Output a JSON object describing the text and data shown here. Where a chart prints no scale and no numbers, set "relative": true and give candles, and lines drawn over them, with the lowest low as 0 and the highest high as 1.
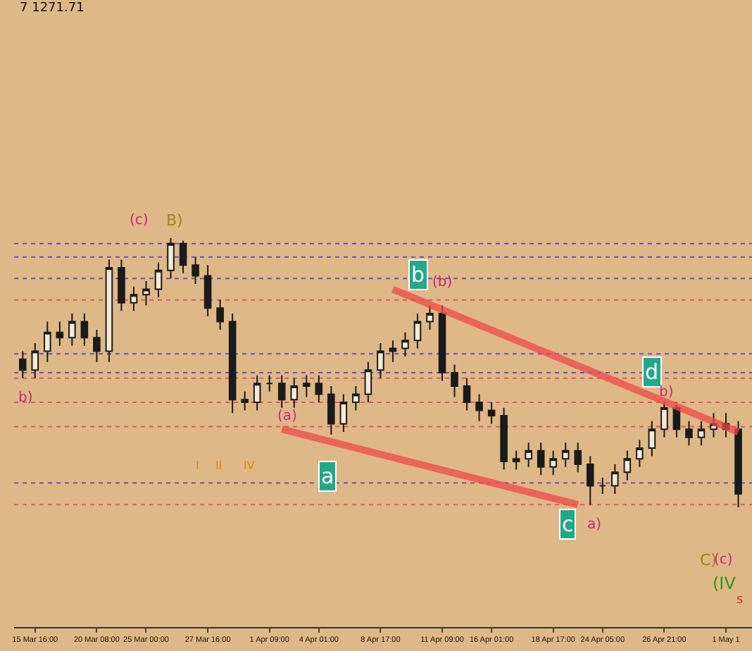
{
  "chart_data": {
    "type": "candlestick",
    "relative": true,
    "grid": false,
    "categories": [
      null,
      "15 Mar 16:00",
      null,
      null,
      null,
      null,
      "20 Mar 08:00",
      null,
      null,
      null,
      "25 Mar 00:00",
      null,
      null,
      null,
      null,
      "27 Mar 16:00",
      null,
      null,
      null,
      null,
      "1 Apr 09:00",
      null,
      null,
      null,
      "4 Apr 01:00",
      null,
      null,
      null,
      null,
      "8 Apr 17:00",
      null,
      null,
      null,
      null,
      "11 Apr 09:00",
      null,
      null,
      null,
      "16 Apr 01:00",
      null,
      null,
      null,
      null,
      "18 Apr 17:00",
      null,
      null,
      null,
      "24 Apr 05:00",
      null,
      null,
      null,
      null,
      "26 Apr 21:00",
      null,
      null,
      null,
      null,
      "1 May 1",
      null
    ],
    "ohlc": [
      [
        0.55,
        0.58,
        0.48,
        0.51
      ],
      [
        0.51,
        0.61,
        0.48,
        0.58
      ],
      [
        0.58,
        0.69,
        0.54,
        0.65
      ],
      [
        0.65,
        0.69,
        0.6,
        0.63
      ],
      [
        0.63,
        0.72,
        0.6,
        0.69
      ],
      [
        0.69,
        0.72,
        0.6,
        0.63
      ],
      [
        0.63,
        0.66,
        0.54,
        0.58
      ],
      [
        0.58,
        0.92,
        0.54,
        0.89
      ],
      [
        0.89,
        0.92,
        0.73,
        0.76
      ],
      [
        0.76,
        0.82,
        0.73,
        0.79
      ],
      [
        0.79,
        0.84,
        0.75,
        0.81
      ],
      [
        0.81,
        0.91,
        0.78,
        0.88
      ],
      [
        0.88,
        1.0,
        0.85,
        0.98
      ],
      [
        0.98,
        0.99,
        0.87,
        0.9
      ],
      [
        0.9,
        0.93,
        0.83,
        0.86
      ],
      [
        0.86,
        0.9,
        0.71,
        0.74
      ],
      [
        0.74,
        0.77,
        0.66,
        0.69
      ],
      [
        0.69,
        0.72,
        0.35,
        0.4
      ],
      [
        0.4,
        0.43,
        0.36,
        0.39
      ],
      [
        0.39,
        0.49,
        0.36,
        0.46
      ],
      [
        0.46,
        0.49,
        0.43,
        0.46
      ],
      [
        0.46,
        0.49,
        0.37,
        0.4
      ],
      [
        0.4,
        0.48,
        0.37,
        0.45
      ],
      [
        0.45,
        0.49,
        0.41,
        0.46
      ],
      [
        0.46,
        0.49,
        0.39,
        0.42
      ],
      [
        0.42,
        0.45,
        0.27,
        0.31
      ],
      [
        0.31,
        0.42,
        0.28,
        0.39
      ],
      [
        0.39,
        0.45,
        0.36,
        0.42
      ],
      [
        0.42,
        0.54,
        0.39,
        0.51
      ],
      [
        0.51,
        0.61,
        0.48,
        0.58
      ],
      [
        0.58,
        0.62,
        0.54,
        0.59
      ],
      [
        0.59,
        0.65,
        0.56,
        0.62
      ],
      [
        0.62,
        0.72,
        0.59,
        0.69
      ],
      [
        0.69,
        0.75,
        0.66,
        0.72
      ],
      [
        0.72,
        0.75,
        0.47,
        0.5
      ],
      [
        0.5,
        0.53,
        0.41,
        0.45
      ],
      [
        0.45,
        0.48,
        0.36,
        0.39
      ],
      [
        0.39,
        0.42,
        0.32,
        0.36
      ],
      [
        0.36,
        0.39,
        0.31,
        0.34
      ],
      [
        0.34,
        0.37,
        0.14,
        0.17
      ],
      [
        0.17,
        0.21,
        0.14,
        0.18
      ],
      [
        0.18,
        0.24,
        0.15,
        0.21
      ],
      [
        0.21,
        0.24,
        0.12,
        0.15
      ],
      [
        0.15,
        0.21,
        0.12,
        0.18
      ],
      [
        0.18,
        0.24,
        0.15,
        0.21
      ],
      [
        0.21,
        0.24,
        0.13,
        0.16
      ],
      [
        0.16,
        0.19,
        0.01,
        0.08
      ],
      [
        0.08,
        0.11,
        0.05,
        0.08
      ],
      [
        0.08,
        0.16,
        0.05,
        0.13
      ],
      [
        0.13,
        0.21,
        0.1,
        0.18
      ],
      [
        0.18,
        0.25,
        0.15,
        0.22
      ],
      [
        0.22,
        0.32,
        0.19,
        0.29
      ],
      [
        0.29,
        0.39,
        0.26,
        0.37
      ],
      [
        0.37,
        0.38,
        0.26,
        0.29
      ],
      [
        0.29,
        0.32,
        0.23,
        0.26
      ],
      [
        0.26,
        0.32,
        0.23,
        0.29
      ],
      [
        0.29,
        0.35,
        0.26,
        0.31
      ],
      [
        0.31,
        0.35,
        0.26,
        0.29
      ],
      [
        0.29,
        0.32,
        0.0,
        0.05
      ]
    ],
    "series": [
      {
        "type": "line",
        "color": "#f04848",
        "values": [
          null,
          null,
          null,
          null,
          null,
          null,
          null,
          null,
          null,
          null,
          null,
          null,
          null,
          null,
          null,
          null,
          null,
          null,
          null,
          null,
          null,
          null,
          null,
          null,
          null,
          null,
          null,
          null,
          null,
          null,
          0.81,
          null,
          null,
          null,
          null,
          null,
          null,
          null,
          null,
          null,
          null,
          null,
          null,
          null,
          null,
          null,
          null,
          null,
          null,
          null,
          null,
          null,
          null,
          null,
          null,
          null,
          null,
          null,
          0.28
        ]
      },
      {
        "type": "line",
        "color": "#f04848",
        "values": [
          null,
          null,
          null,
          null,
          null,
          null,
          null,
          null,
          null,
          null,
          null,
          null,
          null,
          null,
          null,
          null,
          null,
          null,
          null,
          null,
          null,
          0.29,
          null,
          null,
          null,
          null,
          null,
          null,
          null,
          null,
          null,
          null,
          null,
          null,
          null,
          null,
          null,
          null,
          null,
          null,
          null,
          null,
          null,
          null,
          null,
          0.01,
          null,
          null,
          null,
          null,
          null,
          null,
          null,
          null,
          null,
          null,
          null,
          null,
          null
        ]
      }
    ],
    "ref_lines": [
      {
        "axis": "y",
        "value": 0.98,
        "color": "#6a50c0",
        "line_style": "dotted"
      },
      {
        "axis": "y",
        "value": 0.93,
        "color": "#6a50c0",
        "line_style": "dotted"
      },
      {
        "axis": "y",
        "value": 0.85,
        "color": "#6a50c0",
        "line_style": "dotted"
      },
      {
        "axis": "y",
        "value": 0.77,
        "color": "#d85a6a",
        "line_style": "dotted"
      },
      {
        "axis": "y",
        "value": 0.57,
        "color": "#6a50c0",
        "line_style": "dotted"
      },
      {
        "axis": "y",
        "value": 0.5,
        "color": "#6a50c0",
        "line_style": "dotted"
      },
      {
        "axis": "y",
        "value": 0.48,
        "color": "#d85a6a",
        "line_style": "dotted"
      },
      {
        "axis": "y",
        "value": 0.39,
        "color": "#d85a6a",
        "line_style": "dotted"
      },
      {
        "axis": "y",
        "value": 0.3,
        "color": "#d85a6a",
        "line_style": "dotted"
      },
      {
        "axis": "y",
        "value": 0.09,
        "color": "#6a50c0",
        "line_style": "dotted"
      },
      {
        "axis": "y",
        "value": 0.01,
        "color": "#d85a6a",
        "line_style": "dotted"
      }
    ],
    "annotations": [
      "7 1271.71",
      "(c)",
      "B)",
      "b",
      "(b)",
      "(a)",
      "a",
      "d",
      "b)",
      "c",
      "a)",
      "C)",
      "(c)",
      "(IV",
      "s",
      "b)",
      "I",
      "II",
      "IV"
    ]
  }
}
